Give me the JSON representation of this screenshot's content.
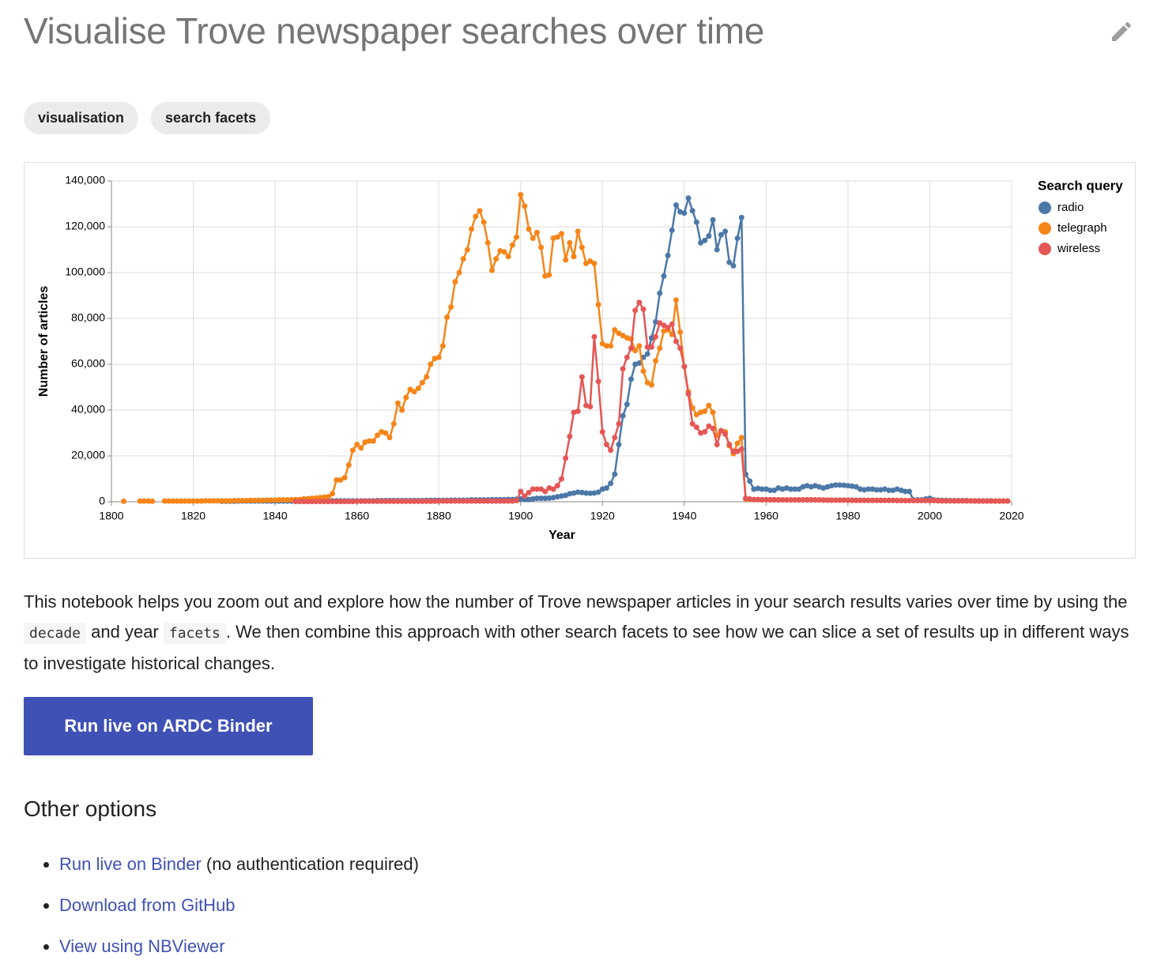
{
  "header": {
    "title": "Visualise Trove newspaper searches over time"
  },
  "tags": [
    "visualisation",
    "search facets"
  ],
  "chart_data": {
    "type": "line",
    "x_label": "Year",
    "y_label": "Number of articles",
    "legend_title": "Search query",
    "xlim": [
      1800,
      2020
    ],
    "xticks": [
      1800,
      1820,
      1840,
      1860,
      1880,
      1900,
      1920,
      1940,
      1960,
      1980,
      2000,
      2020
    ],
    "ylim": [
      0,
      140000
    ],
    "yticks": [
      0,
      {
        "value": 20000,
        "label": "20,000"
      },
      {
        "value": 40000,
        "label": "40,000"
      },
      {
        "value": 60000,
        "label": "60,000"
      },
      {
        "value": 80000,
        "label": "80,000"
      },
      {
        "value": 100000,
        "label": "100,000"
      },
      {
        "value": 120000,
        "label": "120,000"
      },
      {
        "value": 140000,
        "label": "140,000"
      }
    ],
    "grid": true,
    "x": [
      1803,
      1804,
      1805,
      1806,
      1807,
      1808,
      1809,
      1810,
      1811,
      1812,
      1813,
      1814,
      1815,
      1816,
      1817,
      1818,
      1819,
      1820,
      1821,
      1822,
      1823,
      1824,
      1825,
      1826,
      1827,
      1828,
      1829,
      1830,
      1831,
      1832,
      1833,
      1834,
      1835,
      1836,
      1837,
      1838,
      1839,
      1840,
      1841,
      1842,
      1843,
      1844,
      1845,
      1846,
      1847,
      1848,
      1849,
      1850,
      1851,
      1852,
      1853,
      1854,
      1855,
      1856,
      1857,
      1858,
      1859,
      1860,
      1861,
      1862,
      1863,
      1864,
      1865,
      1866,
      1867,
      1868,
      1869,
      1870,
      1871,
      1872,
      1873,
      1874,
      1875,
      1876,
      1877,
      1878,
      1879,
      1880,
      1881,
      1882,
      1883,
      1884,
      1885,
      1886,
      1887,
      1888,
      1889,
      1890,
      1891,
      1892,
      1893,
      1894,
      1895,
      1896,
      1897,
      1898,
      1899,
      1900,
      1901,
      1902,
      1903,
      1904,
      1905,
      1906,
      1907,
      1908,
      1909,
      1910,
      1911,
      1912,
      1913,
      1914,
      1915,
      1916,
      1917,
      1918,
      1919,
      1920,
      1921,
      1922,
      1923,
      1924,
      1925,
      1926,
      1927,
      1928,
      1929,
      1930,
      1931,
      1932,
      1933,
      1934,
      1935,
      1936,
      1937,
      1938,
      1939,
      1940,
      1941,
      1942,
      1943,
      1944,
      1945,
      1946,
      1947,
      1948,
      1949,
      1950,
      1951,
      1952,
      1953,
      1954,
      1955,
      1956,
      1957,
      1958,
      1959,
      1960,
      1961,
      1962,
      1963,
      1964,
      1965,
      1966,
      1967,
      1968,
      1969,
      1970,
      1971,
      1972,
      1973,
      1974,
      1975,
      1976,
      1977,
      1978,
      1979,
      1980,
      1981,
      1982,
      1983,
      1984,
      1985,
      1986,
      1987,
      1988,
      1989,
      1990,
      1991,
      1992,
      1993,
      1994,
      1995,
      1996,
      1997,
      1998,
      1999,
      2000,
      2001,
      2002,
      2003,
      2004,
      2005,
      2006,
      2007,
      2008,
      2009,
      2010,
      2011,
      2012,
      2013,
      2014,
      2015,
      2016,
      2017,
      2018,
      2019
    ],
    "series": [
      {
        "name": "radio",
        "color": "#4c78a8",
        "values": [
          null,
          null,
          null,
          null,
          null,
          null,
          null,
          null,
          null,
          null,
          null,
          null,
          null,
          null,
          null,
          null,
          null,
          null,
          null,
          null,
          null,
          null,
          null,
          null,
          200,
          200,
          200,
          200,
          300,
          300,
          300,
          300,
          300,
          300,
          300,
          300,
          300,
          300,
          300,
          300,
          300,
          300,
          400,
          400,
          400,
          400,
          400,
          400,
          400,
          400,
          400,
          400,
          400,
          400,
          400,
          400,
          400,
          400,
          400,
          400,
          400,
          400,
          500,
          500,
          500,
          500,
          500,
          500,
          500,
          500,
          500,
          500,
          500,
          500,
          600,
          600,
          600,
          600,
          600,
          600,
          700,
          700,
          700,
          700,
          700,
          800,
          800,
          800,
          800,
          800,
          900,
          900,
          900,
          900,
          1000,
          1000,
          1100,
          1200,
          1000,
          1000,
          1200,
          1500,
          1500,
          1500,
          1600,
          1800,
          2200,
          2500,
          2800,
          3500,
          3800,
          4200,
          4000,
          3800,
          3700,
          3800,
          4200,
          5500,
          6000,
          8000,
          12000,
          25000,
          37500,
          42500,
          53500,
          60000,
          60500,
          63000,
          64500,
          71500,
          78500,
          91000,
          98500,
          107500,
          118500,
          129500,
          126500,
          126000,
          132500,
          127000,
          122000,
          113000,
          114000,
          116000,
          123000,
          110000,
          116500,
          118000,
          104500,
          103000,
          115000,
          124000,
          12000,
          9000,
          5500,
          5800,
          5500,
          5500,
          5000,
          5000,
          6000,
          5500,
          6000,
          5500,
          5500,
          5500,
          6500,
          7000,
          6500,
          7000,
          6500,
          6000,
          6500,
          7000,
          7300,
          7300,
          7200,
          7000,
          6800,
          6500,
          5500,
          5200,
          5500,
          5500,
          5200,
          5200,
          5500,
          5000,
          5000,
          5500,
          5000,
          4500,
          4500,
          800,
          800,
          800,
          1200,
          1500,
          800,
          700,
          600,
          600,
          500,
          500,
          500,
          500,
          500,
          400,
          400,
          400,
          400,
          400,
          400,
          300,
          300,
          300,
          300
        ]
      },
      {
        "name": "telegraph",
        "color": "#f58518",
        "values": [
          200,
          null,
          null,
          null,
          300,
          300,
          300,
          200,
          null,
          null,
          300,
          300,
          300,
          300,
          300,
          300,
          300,
          300,
          300,
          300,
          400,
          400,
          400,
          400,
          400,
          400,
          400,
          500,
          500,
          500,
          500,
          600,
          600,
          600,
          600,
          700,
          700,
          700,
          800,
          800,
          800,
          900,
          900,
          1000,
          1200,
          1300,
          1500,
          1600,
          1800,
          2000,
          2200,
          3500,
          9500,
          9500,
          10500,
          16000,
          22500,
          25000,
          23500,
          26000,
          26500,
          26500,
          29000,
          30500,
          30000,
          28000,
          34000,
          43000,
          40000,
          45500,
          49000,
          48000,
          49500,
          52000,
          54500,
          60000,
          62500,
          63000,
          68000,
          80500,
          85000,
          96000,
          100000,
          106000,
          110000,
          119000,
          124500,
          127000,
          122000,
          113000,
          101000,
          106000,
          109500,
          109000,
          107000,
          112000,
          115500,
          134000,
          129000,
          119000,
          115000,
          117500,
          111000,
          98500,
          99000,
          115000,
          115500,
          117000,
          105500,
          113000,
          107000,
          118000,
          111000,
          104000,
          105000,
          104000,
          86000,
          69000,
          68000,
          68000,
          75000,
          73500,
          72500,
          71500,
          71000,
          66000,
          68000,
          57000,
          52000,
          51000,
          61500,
          67000,
          74500,
          75000,
          73000,
          88000,
          74000,
          59000,
          48000,
          41000,
          38000,
          39000,
          39500,
          42000,
          39000,
          29000,
          31000,
          30500,
          24500,
          21000,
          25500,
          28000,
          1200,
          1000,
          900,
          900,
          800,
          800,
          800,
          800,
          800,
          800,
          800,
          800,
          800,
          800,
          800,
          900,
          900,
          800,
          800,
          800,
          700,
          700,
          700,
          700,
          700,
          700,
          700,
          600,
          600,
          600,
          600,
          600,
          600,
          600,
          600,
          600,
          600,
          600,
          600,
          500,
          500,
          500,
          500,
          500,
          500,
          500,
          500,
          500,
          400,
          400,
          400,
          400,
          400,
          400,
          400,
          400,
          400,
          300,
          300,
          300,
          300,
          300,
          300,
          300,
          300
        ]
      },
      {
        "name": "wireless",
        "color": "#e45756",
        "values": [
          null,
          null,
          null,
          null,
          null,
          null,
          null,
          null,
          null,
          null,
          null,
          null,
          null,
          null,
          null,
          null,
          null,
          null,
          null,
          null,
          null,
          null,
          null,
          null,
          null,
          null,
          null,
          null,
          null,
          null,
          null,
          null,
          null,
          null,
          null,
          null,
          null,
          null,
          null,
          null,
          null,
          null,
          100,
          100,
          100,
          100,
          100,
          100,
          100,
          100,
          100,
          100,
          100,
          100,
          100,
          100,
          100,
          200,
          200,
          200,
          200,
          200,
          200,
          200,
          200,
          200,
          200,
          200,
          200,
          200,
          200,
          200,
          200,
          200,
          200,
          200,
          200,
          300,
          300,
          300,
          300,
          300,
          300,
          300,
          300,
          300,
          300,
          300,
          300,
          300,
          300,
          300,
          300,
          300,
          300,
          300,
          500,
          4500,
          2500,
          4000,
          5500,
          5500,
          5500,
          4500,
          6000,
          5500,
          7000,
          10000,
          19000,
          28500,
          39000,
          39500,
          54500,
          42000,
          41500,
          72000,
          52500,
          30500,
          25000,
          22500,
          28000,
          34000,
          58000,
          63000,
          67000,
          83500,
          87000,
          84000,
          67500,
          67500,
          72000,
          78000,
          77000,
          76000,
          77500,
          70000,
          67000,
          59000,
          47000,
          34000,
          32500,
          30000,
          30500,
          33000,
          32000,
          25000,
          31000,
          29500,
          25000,
          22000,
          22000,
          23000,
          1500,
          1200,
          1000,
          1000,
          900,
          900,
          900,
          900,
          800,
          800,
          800,
          800,
          800,
          800,
          800,
          800,
          800,
          800,
          800,
          700,
          700,
          700,
          700,
          700,
          700,
          700,
          600,
          600,
          600,
          600,
          600,
          600,
          600,
          600,
          600,
          600,
          600,
          500,
          500,
          500,
          500,
          500,
          500,
          500,
          500,
          500,
          500,
          400,
          400,
          400,
          400,
          400,
          400,
          400,
          400,
          400,
          300,
          300,
          300,
          300,
          300,
          300,
          300,
          300,
          300
        ]
      }
    ]
  },
  "description": [
    "This notebook helps you zoom out and explore how the number of Trove newspaper articles in your search results varies over time by using the ",
    "decade",
    " and year ",
    "facets",
    ". We then combine this approach with other search facets to see how we can slice a set of results up in different ways to investigate historical changes."
  ],
  "button": "Run live on ARDC Binder",
  "other_options": {
    "heading": "Other options",
    "items": [
      {
        "link": "Run live on Binder",
        "note": "(no authentication required)"
      },
      {
        "link": "Download from GitHub"
      },
      {
        "link": "View using NBViewer"
      }
    ]
  }
}
